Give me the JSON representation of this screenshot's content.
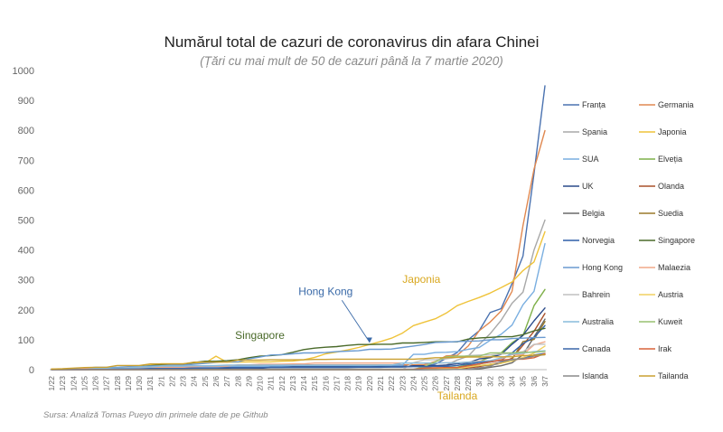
{
  "chart_data": {
    "type": "line",
    "title": "Numărul total de cazuri de coronavirus din afara Chinei",
    "subtitle": "(Țări cu mai mult de 50 de cazuri până la 7 martie 2020)",
    "source": "Sursa: Analiză Tomas Pueyo din primele date de pe Github",
    "ylim": [
      0,
      1000
    ],
    "yticks": [
      0,
      100,
      200,
      300,
      400,
      500,
      600,
      700,
      800,
      900,
      1000
    ],
    "grid": false,
    "legend_position": "right",
    "x": [
      "1/22",
      "1/23",
      "1/24",
      "1/25",
      "1/26",
      "1/27",
      "1/28",
      "1/29",
      "1/30",
      "1/31",
      "2/1",
      "2/2",
      "2/3",
      "2/4",
      "2/5",
      "2/6",
      "2/7",
      "2/8",
      "2/9",
      "2/10",
      "2/11",
      "2/12",
      "2/13",
      "2/14",
      "2/15",
      "2/16",
      "2/17",
      "2/18",
      "2/19",
      "2/20",
      "2/21",
      "2/22",
      "2/23",
      "2/24",
      "2/25",
      "2/26",
      "2/27",
      "2/28",
      "2/29",
      "3/1",
      "3/2",
      "3/3",
      "3/4",
      "3/5",
      "3/6",
      "3/7"
    ],
    "series": [
      {
        "name": "Franța",
        "color": "#4a72b0",
        "values": [
          0,
          0,
          0,
          3,
          3,
          3,
          4,
          5,
          5,
          6,
          6,
          6,
          6,
          6,
          6,
          6,
          6,
          11,
          11,
          11,
          11,
          11,
          11,
          11,
          12,
          12,
          12,
          12,
          12,
          12,
          12,
          12,
          12,
          12,
          12,
          18,
          38,
          57,
          100,
          130,
          191,
          204,
          288,
          380,
          656,
          949
        ]
      },
      {
        "name": "Germania",
        "color": "#e08850",
        "values": [
          0,
          0,
          0,
          0,
          0,
          1,
          4,
          4,
          4,
          5,
          8,
          10,
          12,
          12,
          12,
          12,
          13,
          13,
          14,
          14,
          16,
          16,
          16,
          16,
          16,
          16,
          16,
          16,
          16,
          16,
          16,
          16,
          16,
          16,
          17,
          27,
          46,
          48,
          79,
          130,
          159,
          196,
          262,
          482,
          670,
          799
        ]
      },
      {
        "name": "Spania",
        "color": "#a8a8a8",
        "values": [
          0,
          0,
          0,
          0,
          0,
          0,
          0,
          0,
          0,
          0,
          1,
          1,
          1,
          1,
          1,
          1,
          1,
          1,
          2,
          2,
          2,
          2,
          2,
          2,
          2,
          2,
          2,
          2,
          2,
          2,
          2,
          2,
          2,
          2,
          6,
          13,
          15,
          32,
          45,
          84,
          120,
          165,
          222,
          259,
          400,
          500
        ]
      },
      {
        "name": "Japonia",
        "color": "#efc33a",
        "values": [
          2,
          2,
          2,
          2,
          4,
          4,
          7,
          7,
          11,
          15,
          20,
          20,
          20,
          22,
          22,
          45,
          25,
          25,
          26,
          26,
          26,
          28,
          29,
          33,
          41,
          53,
          59,
          66,
          74,
          84,
          94,
          105,
          122,
          147,
          159,
          170,
          189,
          214,
          228,
          241,
          256,
          274,
          293,
          331,
          360,
          461
        ]
      },
      {
        "name": "SUA",
        "color": "#79aee0",
        "values": [
          1,
          1,
          2,
          2,
          5,
          5,
          5,
          5,
          5,
          7,
          8,
          8,
          11,
          11,
          11,
          11,
          11,
          11,
          11,
          11,
          12,
          12,
          13,
          13,
          13,
          13,
          13,
          13,
          13,
          13,
          15,
          15,
          15,
          51,
          51,
          57,
          58,
          60,
          68,
          74,
          98,
          118,
          149,
          217,
          262,
          421
        ]
      },
      {
        "name": "Elveția",
        "color": "#7fb04a",
        "values": [
          0,
          0,
          0,
          0,
          0,
          0,
          0,
          0,
          0,
          0,
          0,
          0,
          0,
          0,
          0,
          0,
          0,
          0,
          0,
          0,
          0,
          0,
          0,
          0,
          0,
          0,
          0,
          0,
          0,
          0,
          0,
          0,
          0,
          0,
          1,
          1,
          8,
          8,
          18,
          27,
          42,
          56,
          90,
          114,
          214,
          268
        ]
      },
      {
        "name": "UK",
        "color": "#2a4a8a",
        "values": [
          0,
          0,
          0,
          0,
          0,
          0,
          0,
          0,
          0,
          0,
          2,
          2,
          2,
          2,
          2,
          2,
          3,
          3,
          3,
          4,
          8,
          8,
          9,
          9,
          9,
          9,
          9,
          9,
          9,
          9,
          9,
          9,
          9,
          13,
          13,
          13,
          15,
          20,
          23,
          36,
          40,
          51,
          85,
          115,
          163,
          206
        ]
      },
      {
        "name": "Olanda",
        "color": "#a8502a",
        "values": [
          0,
          0,
          0,
          0,
          0,
          0,
          0,
          0,
          0,
          0,
          0,
          0,
          0,
          0,
          0,
          0,
          0,
          0,
          0,
          0,
          0,
          0,
          0,
          0,
          0,
          0,
          0,
          0,
          0,
          0,
          0,
          0,
          0,
          0,
          0,
          0,
          1,
          1,
          6,
          10,
          18,
          24,
          38,
          82,
          128,
          188
        ]
      },
      {
        "name": "Belgia",
        "color": "#6a6a6a",
        "values": [
          0,
          0,
          0,
          0,
          0,
          0,
          0,
          0,
          0,
          0,
          0,
          0,
          0,
          0,
          1,
          1,
          1,
          1,
          1,
          1,
          1,
          1,
          1,
          1,
          1,
          1,
          1,
          1,
          1,
          1,
          1,
          1,
          1,
          1,
          1,
          1,
          1,
          1,
          1,
          2,
          8,
          13,
          23,
          50,
          109,
          169
        ]
      },
      {
        "name": "Suedia",
        "color": "#9a7a2a",
        "values": [
          0,
          0,
          0,
          0,
          0,
          0,
          0,
          0,
          0,
          1,
          1,
          1,
          1,
          1,
          1,
          1,
          1,
          1,
          1,
          1,
          1,
          1,
          1,
          1,
          1,
          1,
          1,
          1,
          1,
          1,
          1,
          1,
          1,
          1,
          1,
          2,
          7,
          7,
          12,
          14,
          15,
          21,
          35,
          94,
          101,
          161
        ]
      },
      {
        "name": "Norvegia",
        "color": "#2f5fa8",
        "values": [
          0,
          0,
          0,
          0,
          0,
          0,
          0,
          0,
          0,
          0,
          0,
          0,
          0,
          0,
          0,
          0,
          0,
          0,
          0,
          0,
          0,
          0,
          0,
          0,
          0,
          0,
          0,
          0,
          0,
          0,
          0,
          0,
          0,
          0,
          0,
          1,
          1,
          6,
          15,
          19,
          25,
          32,
          56,
          87,
          108,
          147
        ]
      },
      {
        "name": "Singapore",
        "color": "#4a6a2a",
        "values": [
          0,
          1,
          3,
          3,
          4,
          5,
          7,
          7,
          10,
          13,
          16,
          18,
          18,
          24,
          28,
          28,
          30,
          33,
          40,
          45,
          47,
          50,
          58,
          67,
          72,
          75,
          77,
          81,
          84,
          84,
          85,
          85,
          89,
          89,
          91,
          93,
          93,
          93,
          102,
          106,
          108,
          110,
          110,
          117,
          130,
          138
        ]
      },
      {
        "name": "Hong Kong",
        "color": "#6a9ad0",
        "values": [
          0,
          2,
          2,
          5,
          8,
          8,
          8,
          10,
          10,
          12,
          13,
          15,
          15,
          18,
          21,
          24,
          26,
          26,
          36,
          42,
          49,
          50,
          53,
          56,
          56,
          57,
          60,
          62,
          63,
          68,
          68,
          69,
          74,
          79,
          84,
          91,
          92,
          94,
          95,
          96,
          100,
          100,
          104,
          105,
          107,
          108
        ]
      },
      {
        "name": "Malaezia",
        "color": "#f0a888",
        "values": [
          0,
          0,
          0,
          3,
          4,
          4,
          4,
          7,
          8,
          8,
          8,
          8,
          8,
          10,
          12,
          12,
          12,
          16,
          16,
          18,
          18,
          18,
          19,
          19,
          22,
          22,
          22,
          22,
          22,
          22,
          22,
          22,
          22,
          22,
          22,
          22,
          23,
          23,
          25,
          29,
          29,
          36,
          50,
          50,
          83,
          93
        ]
      },
      {
        "name": "Bahrein",
        "color": "#c0c0c0",
        "values": [
          0,
          0,
          0,
          0,
          0,
          0,
          0,
          0,
          0,
          0,
          0,
          0,
          0,
          0,
          0,
          0,
          0,
          0,
          0,
          0,
          0,
          0,
          0,
          0,
          0,
          0,
          0,
          0,
          0,
          0,
          0,
          0,
          1,
          23,
          33,
          33,
          36,
          41,
          47,
          49,
          49,
          52,
          55,
          60,
          85,
          85
        ]
      },
      {
        "name": "Austria",
        "color": "#f0d060",
        "values": [
          0,
          0,
          0,
          0,
          0,
          0,
          0,
          0,
          0,
          0,
          0,
          0,
          0,
          0,
          0,
          0,
          0,
          0,
          0,
          0,
          0,
          0,
          0,
          0,
          0,
          0,
          0,
          0,
          0,
          0,
          0,
          0,
          0,
          0,
          2,
          2,
          3,
          3,
          9,
          14,
          18,
          21,
          29,
          41,
          55,
          79
        ]
      },
      {
        "name": "Australia",
        "color": "#88bcdc",
        "values": [
          0,
          0,
          0,
          0,
          4,
          5,
          5,
          6,
          9,
          9,
          12,
          12,
          12,
          13,
          13,
          14,
          15,
          15,
          15,
          15,
          15,
          15,
          15,
          15,
          15,
          15,
          15,
          15,
          15,
          15,
          15,
          15,
          22,
          22,
          22,
          22,
          23,
          23,
          25,
          27,
          30,
          39,
          52,
          55,
          60,
          63
        ]
      },
      {
        "name": "Kuweit",
        "color": "#98c070",
        "values": [
          0,
          0,
          0,
          0,
          0,
          0,
          0,
          0,
          0,
          0,
          0,
          0,
          0,
          0,
          0,
          0,
          0,
          0,
          0,
          0,
          0,
          0,
          0,
          0,
          0,
          0,
          0,
          0,
          0,
          0,
          0,
          0,
          0,
          0,
          11,
          26,
          43,
          45,
          45,
          45,
          56,
          56,
          56,
          58,
          58,
          61
        ]
      },
      {
        "name": "Canada",
        "color": "#3a66a8",
        "values": [
          0,
          0,
          0,
          0,
          1,
          1,
          2,
          2,
          2,
          4,
          4,
          4,
          4,
          5,
          5,
          5,
          7,
          7,
          7,
          7,
          7,
          7,
          7,
          7,
          7,
          7,
          7,
          7,
          8,
          8,
          8,
          9,
          9,
          10,
          10,
          11,
          11,
          14,
          20,
          24,
          27,
          30,
          33,
          37,
          49,
          54
        ]
      },
      {
        "name": "Irak",
        "color": "#d8643a",
        "values": [
          0,
          0,
          0,
          0,
          0,
          0,
          0,
          0,
          0,
          0,
          0,
          0,
          0,
          0,
          0,
          0,
          0,
          0,
          0,
          0,
          0,
          0,
          0,
          0,
          0,
          0,
          0,
          0,
          0,
          0,
          0,
          0,
          0,
          1,
          5,
          6,
          7,
          7,
          13,
          19,
          26,
          32,
          35,
          35,
          40,
          54
        ]
      },
      {
        "name": "Islanda",
        "color": "#8a8a8a",
        "values": [
          0,
          0,
          0,
          0,
          0,
          0,
          0,
          0,
          0,
          0,
          0,
          0,
          0,
          0,
          0,
          0,
          0,
          0,
          0,
          0,
          0,
          0,
          0,
          0,
          0,
          0,
          0,
          0,
          0,
          0,
          0,
          0,
          0,
          0,
          0,
          0,
          0,
          1,
          1,
          6,
          11,
          26,
          34,
          37,
          45,
          50
        ]
      },
      {
        "name": "Tailanda",
        "color": "#caa030",
        "values": [
          2,
          3,
          5,
          7,
          8,
          8,
          14,
          14,
          14,
          19,
          19,
          19,
          19,
          25,
          25,
          25,
          25,
          32,
          32,
          32,
          33,
          33,
          33,
          33,
          34,
          34,
          35,
          35,
          35,
          35,
          35,
          35,
          35,
          35,
          37,
          40,
          40,
          41,
          42,
          42,
          43,
          43,
          43,
          47,
          48,
          50
        ]
      }
    ],
    "annotations": [
      {
        "text": "Hong Kong",
        "color": "#3a6aa8",
        "target_series": "Hong Kong",
        "target_index": 29,
        "x_index": 25,
        "y_value": 250
      },
      {
        "text": "Japonia",
        "color": "#d9a820",
        "target_series": "Japonia",
        "x_index": 32,
        "y_value": 290
      },
      {
        "text": "Singapore",
        "color": "#4a6a2a",
        "target_series": "Singapore",
        "x_index": 19,
        "y_value": 102
      },
      {
        "text": "Tailanda",
        "color": "#d9a820",
        "target_series": "Tailanda",
        "x_index": 37,
        "y_value": -100
      }
    ]
  }
}
